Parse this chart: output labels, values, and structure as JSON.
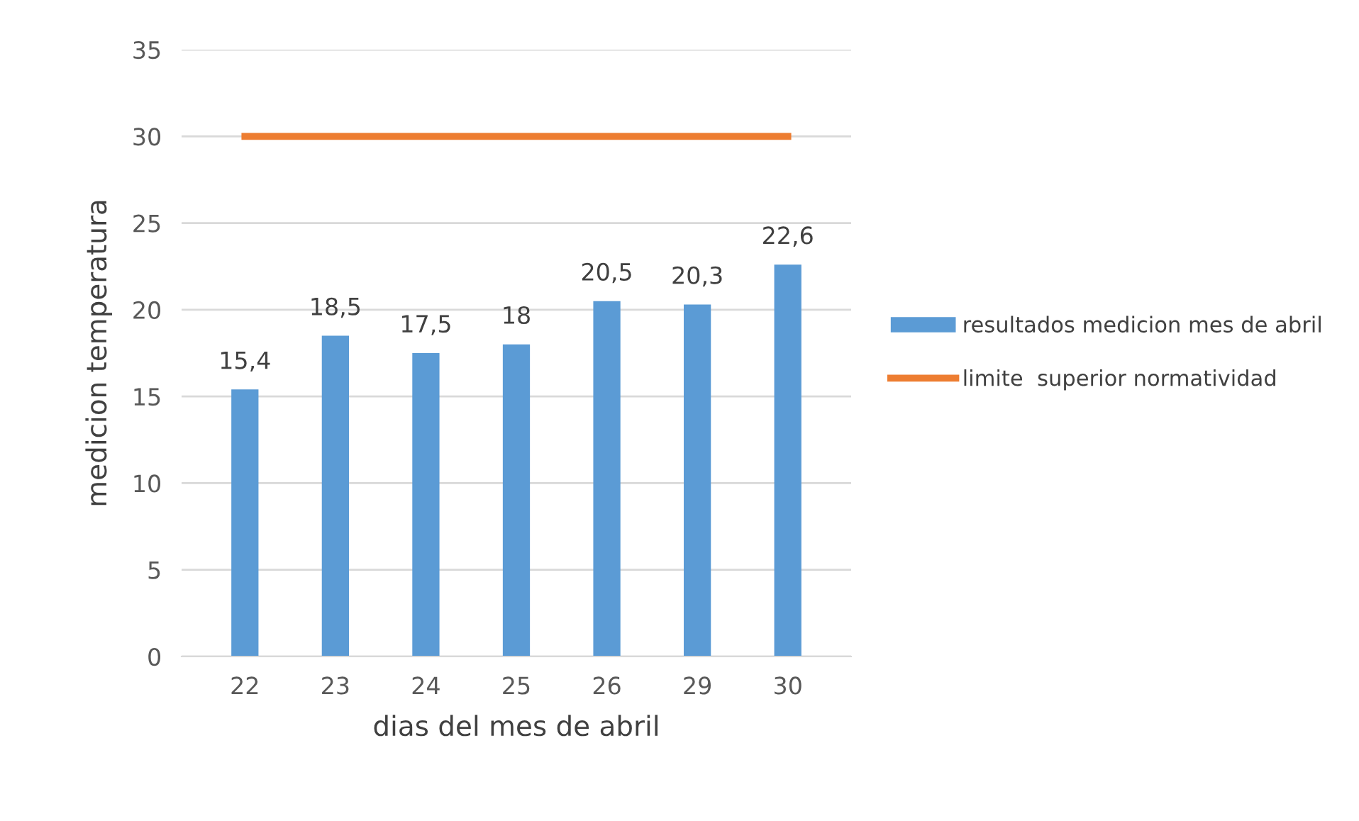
{
  "chart_data": {
    "type": "bar",
    "xlabel": "dias del mes de abril",
    "ylabel": "medicion temperatura",
    "categories": [
      "22",
      "23",
      "24",
      "25",
      "26",
      "29",
      "30"
    ],
    "series": [
      {
        "name": "resultados medicion mes de abril",
        "color": "#5b9bd5",
        "values": [
          15.4,
          18.5,
          17.5,
          18,
          20.5,
          20.3,
          22.6
        ],
        "value_labels": [
          "15,4",
          "18,5",
          "17,5",
          "18",
          "20,5",
          "20,3",
          "22,6"
        ]
      },
      {
        "name": "limite  superior normatividad",
        "type": "line",
        "color": "#ed7d31",
        "values": [
          30,
          30,
          30,
          30,
          30,
          30,
          30
        ]
      }
    ],
    "ylim": [
      0,
      35
    ],
    "yticks": [
      0,
      5,
      10,
      15,
      20,
      25,
      30,
      35
    ],
    "grid": "y",
    "legend": "right"
  }
}
